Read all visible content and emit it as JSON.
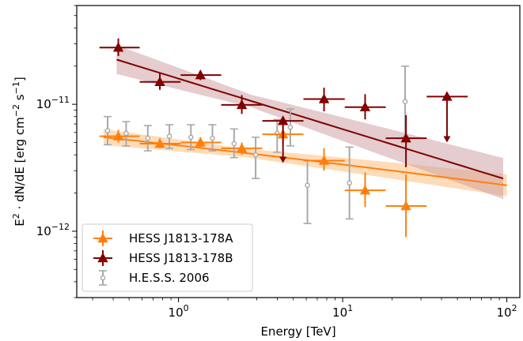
{
  "chart_data": {
    "type": "scatter",
    "title": "",
    "xlabel": "Energy [TeV]",
    "ylabel_parts": [
      "E",
      "2",
      " · dN/dE [erg cm",
      "−2",
      " s",
      "−1",
      "]"
    ],
    "x_scale": "log",
    "y_scale": "log",
    "xlim": [
      0.24,
      120
    ],
    "ylim": [
      3e-13,
      6e-11
    ],
    "x_ticks": [
      {
        "value": 1,
        "base": "10",
        "exp": "0"
      },
      {
        "value": 10,
        "base": "10",
        "exp": "1"
      },
      {
        "value": 100,
        "base": "10",
        "exp": "2"
      }
    ],
    "y_ticks": [
      {
        "value": 1e-12,
        "base": "10",
        "exp": "−12"
      },
      {
        "value": 1e-11,
        "base": "10",
        "exp": "−11"
      }
    ],
    "grid": false,
    "legend_position": "lower-left",
    "series": [
      {
        "name": "H.E.S.S. 2006",
        "color": "#a9a9a9",
        "marker": "open-circle",
        "points": [
          {
            "x": 0.37,
            "y": 6.2e-12,
            "ylo": 4.8e-12,
            "yhi": 8e-12
          },
          {
            "x": 0.48,
            "y": 5.9e-12,
            "ylo": 4.7e-12,
            "yhi": 7.3e-12
          },
          {
            "x": 0.65,
            "y": 5.4e-12,
            "ylo": 4.3e-12,
            "yhi": 6.8e-12
          },
          {
            "x": 0.88,
            "y": 5.6e-12,
            "ylo": 4.5e-12,
            "yhi": 6.9e-12
          },
          {
            "x": 1.19,
            "y": 5.5e-12,
            "ylo": 4.4e-12,
            "yhi": 6.9e-12
          },
          {
            "x": 1.61,
            "y": 5.4e-12,
            "ylo": 4.3e-12,
            "yhi": 6.9e-12
          },
          {
            "x": 2.18,
            "y": 4.9e-12,
            "ylo": 3.8e-12,
            "yhi": 6.4e-12
          },
          {
            "x": 2.95,
            "y": 4e-12,
            "ylo": 2.6e-12,
            "yhi": 5.5e-12
          },
          {
            "x": 3.99,
            "y": 5.9e-12,
            "ylo": 4.2e-12,
            "yhi": 7.6e-12
          },
          {
            "x": 4.8,
            "y": 6.6e-12,
            "ylo": 4.7e-12,
            "yhi": 9.2e-12
          },
          {
            "x": 6.1,
            "y": 2.3e-12,
            "ylo": 1.15e-12,
            "yhi": 3.6e-12
          },
          {
            "x": 11.0,
            "y": 2.4e-12,
            "ylo": 1.25e-12,
            "yhi": 4.6e-12
          },
          {
            "x": 24.0,
            "y": 1.05e-11,
            "ylo": 5.5e-12,
            "yhi": 2e-11
          }
        ]
      },
      {
        "name": "HESS J1813-178A",
        "color": "#ff7f0e",
        "marker": "triangle-up",
        "band_color": "#fdbf80",
        "model_line": {
          "x0": 0.35,
          "y0": 5.5e-12,
          "x1": 100,
          "y1": 2.3e-12,
          "curvature": 0.08
        },
        "band_width_factor": [
          1.08,
          1.22
        ],
        "points": [
          {
            "x": 0.43,
            "y": 5.6e-12,
            "xlo": 0.33,
            "xhi": 0.58,
            "ylo": 5e-12,
            "yhi": 6.3e-12
          },
          {
            "x": 0.77,
            "y": 4.9e-12,
            "xlo": 0.58,
            "xhi": 1.03,
            "ylo": 4.5e-12,
            "yhi": 5.4e-12
          },
          {
            "x": 1.36,
            "y": 5e-12,
            "xlo": 1.03,
            "xhi": 1.82,
            "ylo": 4.6e-12,
            "yhi": 5.5e-12
          },
          {
            "x": 2.43,
            "y": 4.5e-12,
            "xlo": 1.82,
            "xhi": 3.24,
            "ylo": 4e-12,
            "yhi": 5e-12
          },
          {
            "x": 4.33,
            "y": 5.8e-12,
            "xlo": 3.24,
            "xhi": 5.77,
            "ylo": 4.9e-12,
            "yhi": 6.9e-12
          },
          {
            "x": 7.7,
            "y": 3.6e-12,
            "xlo": 5.77,
            "xhi": 10.3,
            "ylo": 3e-12,
            "yhi": 4.5e-12
          },
          {
            "x": 13.7,
            "y": 2.1e-12,
            "xlo": 10.3,
            "xhi": 18.3,
            "ylo": 1.55e-12,
            "yhi": 2.9e-12
          },
          {
            "x": 24.3,
            "y": 1.58e-12,
            "xlo": 18.3,
            "xhi": 32.5,
            "ylo": 9e-13,
            "yhi": 2.8e-12
          }
        ]
      },
      {
        "name": "HESS J1813-178B",
        "color": "#800000",
        "marker": "triangle-up",
        "band_color": "#cc9a9e",
        "model_line": {
          "x0": 0.42,
          "y0": 2.25e-11,
          "x1": 95,
          "y1": 2.6e-12,
          "curvature": 0.0
        },
        "band_width_factor": [
          1.12,
          1.45
        ],
        "points": [
          {
            "x": 0.43,
            "y": 2.8e-11,
            "xlo": 0.33,
            "xhi": 0.58,
            "ylo": 2.4e-11,
            "yhi": 3.3e-11
          },
          {
            "x": 0.77,
            "y": 1.5e-11,
            "xlo": 0.58,
            "xhi": 1.03,
            "ylo": 1.3e-11,
            "yhi": 1.75e-11
          },
          {
            "x": 1.36,
            "y": 1.7e-11,
            "xlo": 1.03,
            "xhi": 1.82,
            "ylo": 1.55e-11,
            "yhi": 1.85e-11
          },
          {
            "x": 2.43,
            "y": 9.9e-12,
            "xlo": 1.82,
            "xhi": 3.24,
            "ylo": 8.4e-12,
            "yhi": 1.18e-11
          },
          {
            "x": 4.33,
            "y": 7.4e-12,
            "xlo": 3.24,
            "xhi": 5.77,
            "ul": true,
            "ulo": 3.45e-12
          },
          {
            "x": 7.7,
            "y": 1.1e-11,
            "xlo": 5.77,
            "xhi": 10.3,
            "ylo": 8.8e-12,
            "yhi": 1.35e-11
          },
          {
            "x": 13.7,
            "y": 9.5e-12,
            "xlo": 10.3,
            "xhi": 18.3,
            "ylo": 7.6e-12,
            "yhi": 1.2e-11
          },
          {
            "x": 24.3,
            "y": 5.4e-12,
            "xlo": 18.3,
            "xhi": 32.5,
            "ylo": 3.2e-12,
            "yhi": 8.2e-12
          },
          {
            "x": 43.2,
            "y": 1.15e-11,
            "xlo": 32.5,
            "xhi": 57.7,
            "ul": true,
            "ulo": 5e-12
          }
        ]
      }
    ]
  }
}
